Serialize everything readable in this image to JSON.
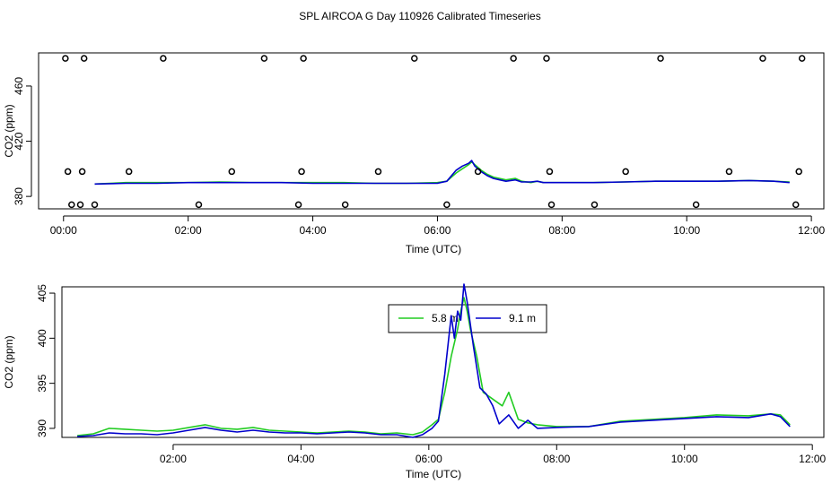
{
  "title": "SPL AIRCOA G  Day 110926  Calibrated Timeseries",
  "colors": {
    "series_5_8": "#22cc22",
    "series_9_1": "#0000cc",
    "axis": "#000000"
  },
  "chart_data": [
    {
      "type": "line",
      "title": "SPL AIRCOA G  Day 110926  Calibrated Timeseries",
      "xlabel": "Time (UTC)",
      "ylabel": "CO2 (ppm)",
      "x_unit": "hours UTC",
      "xlim": [
        -0.4,
        12.2
      ],
      "ylim": [
        371,
        484
      ],
      "x_ticks": [
        {
          "v": 0,
          "label": "00:00"
        },
        {
          "v": 2,
          "label": "02:00"
        },
        {
          "v": 4,
          "label": "04:00"
        },
        {
          "v": 6,
          "label": "06:00"
        },
        {
          "v": 8,
          "label": "08:00"
        },
        {
          "v": 10,
          "label": "10:00"
        },
        {
          "v": 12,
          "label": "12:00"
        }
      ],
      "y_ticks": [
        {
          "v": 380,
          "label": "380"
        },
        {
          "v": 420,
          "label": "420"
        },
        {
          "v": 460,
          "label": "460"
        }
      ],
      "markers": {
        "style": "open-circle",
        "points": [
          {
            "x": 0.03,
            "y": 480
          },
          {
            "x": 0.33,
            "y": 480
          },
          {
            "x": 1.6,
            "y": 480
          },
          {
            "x": 3.22,
            "y": 480
          },
          {
            "x": 3.85,
            "y": 480
          },
          {
            "x": 5.63,
            "y": 480
          },
          {
            "x": 7.22,
            "y": 480
          },
          {
            "x": 7.75,
            "y": 480
          },
          {
            "x": 9.58,
            "y": 480
          },
          {
            "x": 11.22,
            "y": 480
          },
          {
            "x": 11.85,
            "y": 480
          },
          {
            "x": 0.07,
            "y": 398
          },
          {
            "x": 0.3,
            "y": 398
          },
          {
            "x": 1.05,
            "y": 398
          },
          {
            "x": 2.7,
            "y": 398
          },
          {
            "x": 3.82,
            "y": 398
          },
          {
            "x": 5.05,
            "y": 398
          },
          {
            "x": 6.65,
            "y": 398
          },
          {
            "x": 7.8,
            "y": 398
          },
          {
            "x": 9.02,
            "y": 398
          },
          {
            "x": 10.68,
            "y": 398
          },
          {
            "x": 11.8,
            "y": 398
          },
          {
            "x": 0.13,
            "y": 374
          },
          {
            "x": 0.27,
            "y": 374
          },
          {
            "x": 0.5,
            "y": 374
          },
          {
            "x": 2.17,
            "y": 374
          },
          {
            "x": 3.77,
            "y": 374
          },
          {
            "x": 4.52,
            "y": 374
          },
          {
            "x": 6.15,
            "y": 374
          },
          {
            "x": 7.83,
            "y": 374
          },
          {
            "x": 8.52,
            "y": 374
          },
          {
            "x": 10.15,
            "y": 374
          },
          {
            "x": 11.75,
            "y": 374
          }
        ]
      },
      "series": [
        {
          "name": "5.8 m",
          "color": "#22cc22",
          "x": [
            0.5,
            1,
            1.5,
            2,
            2.5,
            3,
            3.5,
            4,
            4.5,
            5,
            5.5,
            6,
            6.15,
            6.3,
            6.4,
            6.5,
            6.55,
            6.6,
            6.7,
            6.8,
            6.9,
            7,
            7.1,
            7.25,
            7.35,
            7.5,
            7.6,
            7.7,
            8,
            8.5,
            9,
            9.5,
            10,
            10.5,
            11,
            11.4,
            11.65
          ],
          "values": [
            389,
            390,
            390,
            390,
            390.5,
            390,
            390,
            390,
            390,
            389.5,
            389.5,
            390,
            391,
            397,
            400,
            403,
            405,
            403,
            399,
            396,
            394,
            393,
            392,
            393,
            391,
            390,
            391,
            390,
            390,
            390,
            390.5,
            391,
            391,
            391,
            391.5,
            391,
            390.5
          ]
        },
        {
          "name": "9.1 m",
          "color": "#0000cc",
          "x": [
            0.5,
            1,
            1.5,
            2,
            2.5,
            3,
            3.5,
            4,
            4.5,
            5,
            5.5,
            6,
            6.15,
            6.3,
            6.4,
            6.5,
            6.55,
            6.6,
            6.7,
            6.8,
            6.9,
            7,
            7.1,
            7.25,
            7.35,
            7.5,
            7.6,
            7.7,
            8,
            8.5,
            9,
            9.5,
            10,
            10.5,
            11,
            11.4,
            11.65
          ],
          "values": [
            389,
            389.5,
            389.5,
            390,
            390,
            390,
            390,
            389.5,
            389.5,
            389.5,
            389.5,
            389.5,
            391,
            399,
            402,
            404,
            406,
            402,
            398,
            395,
            393,
            392,
            391,
            392,
            390.5,
            390.5,
            391,
            390,
            390,
            390,
            390.5,
            391,
            391,
            391,
            391.5,
            391,
            390
          ]
        }
      ]
    },
    {
      "type": "line",
      "xlabel": "Time (UTC)",
      "ylabel": "CO2 (ppm)",
      "x_unit": "hours UTC",
      "xlim": [
        0.26,
        12.18
      ],
      "ylim": [
        389.0,
        405.7
      ],
      "x_ticks": [
        {
          "v": 2,
          "label": "02:00"
        },
        {
          "v": 4,
          "label": "04:00"
        },
        {
          "v": 6,
          "label": "06:00"
        },
        {
          "v": 8,
          "label": "08:00"
        },
        {
          "v": 10,
          "label": "10:00"
        },
        {
          "v": 12,
          "label": "12:00"
        }
      ],
      "y_ticks": [
        {
          "v": 390,
          "label": "390"
        },
        {
          "v": 395,
          "label": "395"
        },
        {
          "v": 400,
          "label": "400"
        },
        {
          "v": 405,
          "label": "405"
        }
      ],
      "legend": {
        "placement": "top-center",
        "entries": [
          "5.8 m",
          "9.1 m"
        ]
      },
      "series": [
        {
          "name": "5.8 m",
          "color": "#22cc22",
          "x": [
            0.5,
            0.75,
            1.0,
            1.25,
            1.5,
            1.75,
            2.0,
            2.25,
            2.5,
            2.75,
            3.0,
            3.25,
            3.5,
            3.75,
            4.0,
            4.25,
            4.5,
            4.75,
            5.0,
            5.25,
            5.5,
            5.75,
            5.9,
            6.05,
            6.15,
            6.25,
            6.35,
            6.45,
            6.5,
            6.55,
            6.6,
            6.65,
            6.75,
            6.85,
            6.95,
            7.05,
            7.15,
            7.25,
            7.4,
            7.55,
            7.7,
            8.0,
            8.5,
            9.0,
            9.5,
            10.0,
            10.5,
            11.0,
            11.35,
            11.5,
            11.65
          ],
          "values": [
            389.2,
            389.4,
            390.0,
            389.9,
            389.8,
            389.7,
            389.8,
            390.1,
            390.4,
            390.0,
            389.9,
            390.1,
            389.8,
            389.7,
            389.6,
            389.5,
            389.6,
            389.7,
            389.6,
            389.4,
            389.5,
            389.3,
            389.6,
            390.4,
            391.0,
            394.0,
            398.0,
            401.0,
            403.0,
            404.5,
            403.0,
            401.0,
            398.0,
            394.0,
            393.5,
            393.0,
            392.5,
            394.0,
            391.0,
            390.6,
            390.4,
            390.2,
            390.2,
            390.8,
            391.0,
            391.2,
            391.5,
            391.4,
            391.6,
            391.5,
            390.4
          ]
        },
        {
          "name": "9.1 m",
          "color": "#0000cc",
          "x": [
            0.5,
            0.75,
            1.0,
            1.25,
            1.5,
            1.75,
            2.0,
            2.25,
            2.5,
            2.75,
            3.0,
            3.25,
            3.5,
            3.75,
            4.0,
            4.25,
            4.5,
            4.75,
            5.0,
            5.25,
            5.5,
            5.75,
            5.9,
            6.05,
            6.15,
            6.25,
            6.35,
            6.4,
            6.45,
            6.5,
            6.55,
            6.6,
            6.7,
            6.8,
            6.9,
            7.0,
            7.1,
            7.25,
            7.4,
            7.55,
            7.7,
            8.0,
            8.5,
            9.0,
            9.5,
            10.0,
            10.5,
            11.0,
            11.35,
            11.5,
            11.65
          ],
          "values": [
            389.1,
            389.2,
            389.5,
            389.4,
            389.4,
            389.3,
            389.5,
            389.8,
            390.1,
            389.8,
            389.6,
            389.8,
            389.6,
            389.5,
            389.5,
            389.4,
            389.5,
            389.6,
            389.5,
            389.3,
            389.3,
            389.0,
            389.3,
            390.0,
            390.8,
            396.0,
            402.5,
            400.0,
            403.0,
            402.0,
            406.0,
            404.0,
            399.0,
            394.5,
            393.8,
            392.5,
            390.5,
            391.5,
            390.0,
            390.9,
            390.0,
            390.1,
            390.2,
            390.7,
            390.9,
            391.1,
            391.3,
            391.2,
            391.6,
            391.3,
            390.2
          ]
        }
      ]
    }
  ]
}
